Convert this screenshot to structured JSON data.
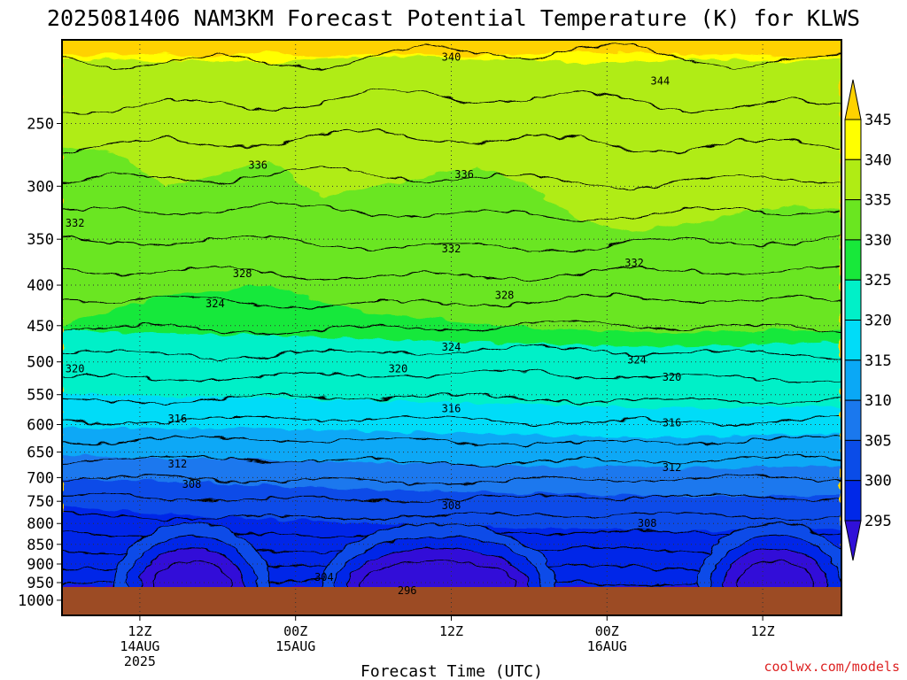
{
  "chart_data": {
    "type": "contour",
    "title": "2025081406 NAM3KM Forecast Potential Temperature (K) for KLWS",
    "xlabel": "Forecast Time (UTC)",
    "credit": "coolwx.com/models",
    "y_ticks": [
      250,
      300,
      350,
      400,
      450,
      500,
      550,
      600,
      650,
      700,
      750,
      800,
      850,
      900,
      950,
      1000
    ],
    "y_tick_labels": [
      "250",
      "300",
      "350",
      "400",
      "450",
      "500",
      "550",
      "600",
      "650",
      "700",
      "750",
      "800",
      "850",
      "900",
      "950",
      "1000"
    ],
    "x_ticks": [
      {
        "hour": 6,
        "l1": "12Z",
        "l2": "14AUG",
        "l3": "2025"
      },
      {
        "hour": 18,
        "l1": "00Z",
        "l2": "15AUG",
        "l3": ""
      },
      {
        "hour": 30,
        "l1": "12Z",
        "l2": "",
        "l3": ""
      },
      {
        "hour": 42,
        "l1": "00Z",
        "l2": "16AUG",
        "l3": ""
      },
      {
        "hour": 54,
        "l1": "12Z",
        "l2": "",
        "l3": ""
      }
    ],
    "colorbar": {
      "labels": [
        "295",
        "300",
        "305",
        "310",
        "315",
        "320",
        "325",
        "330",
        "335",
        "340",
        "345"
      ],
      "colors": [
        "#3010d8",
        "#0028e8",
        "#0a4ce8",
        "#1a78ee",
        "#0aa8f6",
        "#00dcf8",
        "#00f0c8",
        "#18e83a",
        "#6ae620",
        "#b0ec14",
        "#ffff00",
        "#ffd200"
      ]
    },
    "contour_labels": [
      {
        "text": "340",
        "hour": 30.0,
        "p": 206
      },
      {
        "text": "344",
        "hour": 46.1,
        "p": 221
      },
      {
        "text": "336",
        "hour": 15.1,
        "p": 282
      },
      {
        "text": "336",
        "hour": 31.0,
        "p": 290
      },
      {
        "text": "332",
        "hour": 1.0,
        "p": 334
      },
      {
        "text": "332",
        "hour": 30.0,
        "p": 360
      },
      {
        "text": "332",
        "hour": 44.1,
        "p": 375
      },
      {
        "text": "328",
        "hour": 13.9,
        "p": 387
      },
      {
        "text": "328",
        "hour": 34.1,
        "p": 412
      },
      {
        "text": "324",
        "hour": 11.8,
        "p": 422
      },
      {
        "text": "324",
        "hour": 30.0,
        "p": 479
      },
      {
        "text": "324",
        "hour": 44.3,
        "p": 497
      },
      {
        "text": "320",
        "hour": 1.0,
        "p": 510
      },
      {
        "text": "320",
        "hour": 25.9,
        "p": 510
      },
      {
        "text": "320",
        "hour": 47.0,
        "p": 523
      },
      {
        "text": "316",
        "hour": 8.9,
        "p": 590
      },
      {
        "text": "316",
        "hour": 30.0,
        "p": 573
      },
      {
        "text": "316",
        "hour": 47.0,
        "p": 597
      },
      {
        "text": "312",
        "hour": 8.9,
        "p": 673
      },
      {
        "text": "312",
        "hour": 47.0,
        "p": 680
      },
      {
        "text": "308",
        "hour": 10.0,
        "p": 714
      },
      {
        "text": "308",
        "hour": 30.0,
        "p": 759
      },
      {
        "text": "308",
        "hour": 45.1,
        "p": 799
      },
      {
        "text": "304",
        "hour": 20.2,
        "p": 936
      },
      {
        "text": "296",
        "hour": 26.6,
        "p": 972
      }
    ]
  }
}
